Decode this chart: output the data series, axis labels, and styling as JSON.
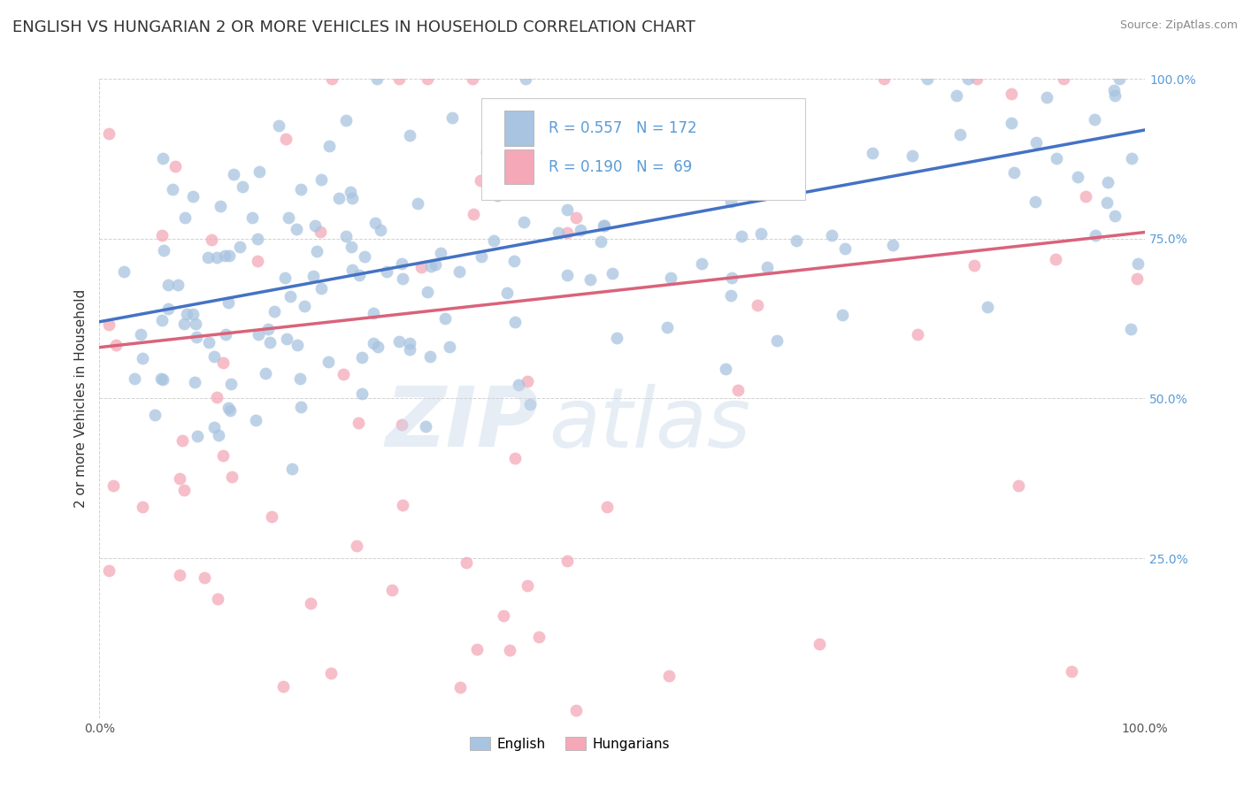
{
  "title": "ENGLISH VS HUNGARIAN 2 OR MORE VEHICLES IN HOUSEHOLD CORRELATION CHART",
  "source": "Source: ZipAtlas.com",
  "ylabel": "2 or more Vehicles in Household",
  "xlim": [
    0,
    1
  ],
  "ylim": [
    0,
    1
  ],
  "english_R": 0.557,
  "english_N": 172,
  "hungarian_R": 0.19,
  "hungarian_N": 69,
  "english_color": "#a8c4e0",
  "hungarian_color": "#f4a8b8",
  "english_line_color": "#4472c4",
  "hungarian_line_color": "#d9637a",
  "legend_english": "English",
  "legend_hungarian": "Hungarians",
  "title_fontsize": 13,
  "axis_label_fontsize": 11,
  "tick_fontsize": 10,
  "right_tick_color": "#5b9bd5",
  "english_seed": 42,
  "hungarian_seed": 7,
  "en_intercept": 0.62,
  "en_slope": 0.3,
  "hu_intercept": 0.58,
  "hu_slope": 0.18
}
